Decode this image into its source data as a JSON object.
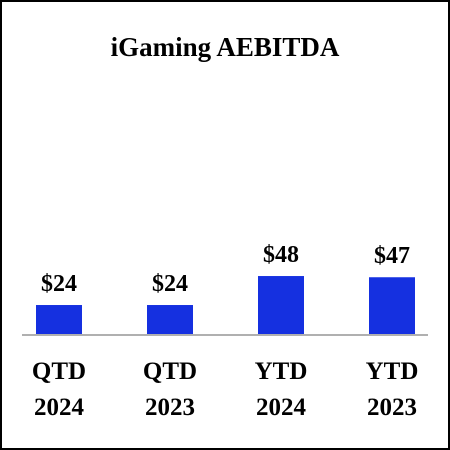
{
  "chart_data": {
    "type": "bar",
    "title": "iGaming AEBITDA",
    "categories": [
      [
        "QTD",
        "2024"
      ],
      [
        "QTD",
        "2023"
      ],
      [
        "YTD",
        "2024"
      ],
      [
        "YTD",
        "2023"
      ]
    ],
    "values": [
      24,
      24,
      48,
      47
    ],
    "value_labels": [
      "$24",
      "$24",
      "$48",
      "$47"
    ],
    "ylim": [
      0,
      53
    ],
    "grid": false,
    "colors": {
      "bar": "#1530E0",
      "axis": "#B0B0B0",
      "text": "#000000"
    }
  }
}
